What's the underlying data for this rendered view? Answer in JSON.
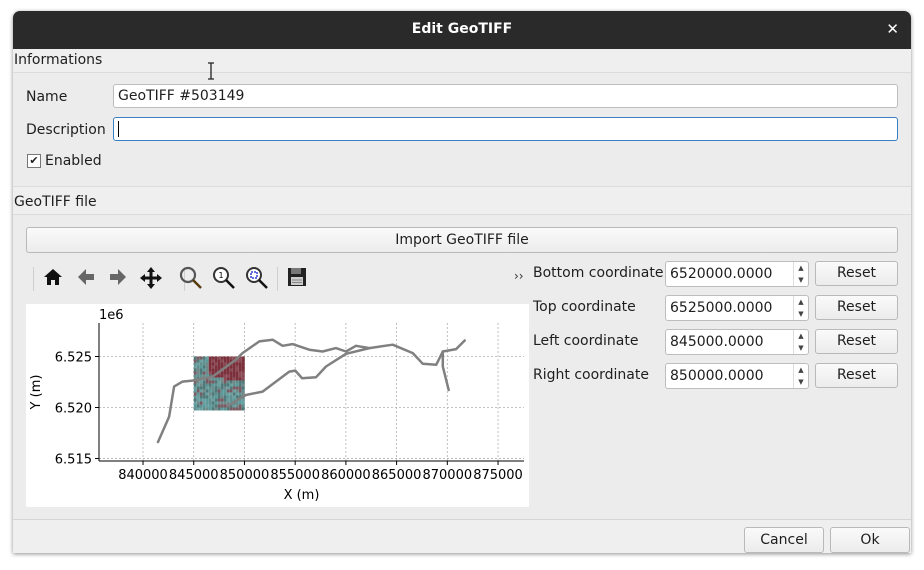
{
  "window": {
    "title": "Edit GeoTIFF",
    "close_icon": "close-icon"
  },
  "informations": {
    "section_label": "Informations",
    "name_label": "Name",
    "name_value": "GeoTIFF #503149",
    "description_label": "Description",
    "description_value": "",
    "enabled_label": "Enabled",
    "enabled_checked": true
  },
  "geotiff": {
    "section_label": "GeoTIFF file",
    "import_button": "Import GeoTIFF file",
    "toolbar": {
      "icons": [
        "home-icon",
        "back-arrow-icon",
        "forward-arrow-icon",
        "pan-icon",
        "zoom-icon",
        "zoom-1-icon",
        "zoom-fit-icon",
        "save-icon"
      ],
      "overflow": "››"
    },
    "coordinates": [
      {
        "label": "Bottom coordinate",
        "value": "6520000.0000",
        "reset": "Reset"
      },
      {
        "label": "Top coordinate",
        "value": "6525000.0000",
        "reset": "Reset"
      },
      {
        "label": "Left coordinate",
        "value": "845000.0000",
        "reset": "Reset"
      },
      {
        "label": "Right coordinate",
        "value": "850000.0000",
        "reset": "Reset"
      }
    ]
  },
  "chart_data": {
    "type": "line",
    "xlabel": "X (m)",
    "ylabel": "Y (m)",
    "y_offset_label": "1e6",
    "xlim": [
      835660,
      877560
    ],
    "ylim": [
      6514760,
      6528280
    ],
    "xticks": [
      840000,
      845000,
      850000,
      855000,
      860000,
      865000,
      870000,
      875000
    ],
    "xtick_labels": [
      "840000",
      "845000",
      "850000",
      "855000",
      "860000",
      "865000",
      "870000",
      "875000"
    ],
    "yticks": [
      6515000,
      6520000,
      6525000
    ],
    "ytick_labels": [
      "6.515",
      "6.520",
      "6.525"
    ],
    "grid": true,
    "line_color": "#808080",
    "raster": {
      "x": [
        845000,
        850000
      ],
      "y": [
        6520000,
        6525000
      ]
    },
    "series": [
      {
        "x": [
          841480,
          842570,
          843060,
          843890,
          844870,
          846850,
          849150,
          849810,
          851460,
          852770,
          853760,
          854740,
          856390,
          857700,
          859020,
          860010,
          861000,
          862320,
          864620,
          866600,
          867580,
          868900,
          869550,
          870870,
          871710
        ],
        "y": [
          6516620,
          6519100,
          6522050,
          6522540,
          6522640,
          6523030,
          6524670,
          6525330,
          6526480,
          6526640,
          6526050,
          6526210,
          6525660,
          6525490,
          6525820,
          6525490,
          6526050,
          6525820,
          6526150,
          6525330,
          6524280,
          6524180,
          6525490,
          6525720,
          6526570
        ]
      },
      {
        "x": [
          869550,
          869550,
          870140
        ],
        "y": [
          6525490,
          6524020,
          6521720
        ]
      },
      {
        "x": [
          848330,
          850140,
          851790,
          854420,
          855010,
          855670,
          857060,
          858040,
          860010,
          862320
        ],
        "y": [
          6520150,
          6521230,
          6521560,
          6523520,
          6523620,
          6522870,
          6522970,
          6524020,
          6525260,
          6525820
        ]
      }
    ]
  },
  "footer": {
    "cancel": "Cancel",
    "ok": "Ok"
  }
}
